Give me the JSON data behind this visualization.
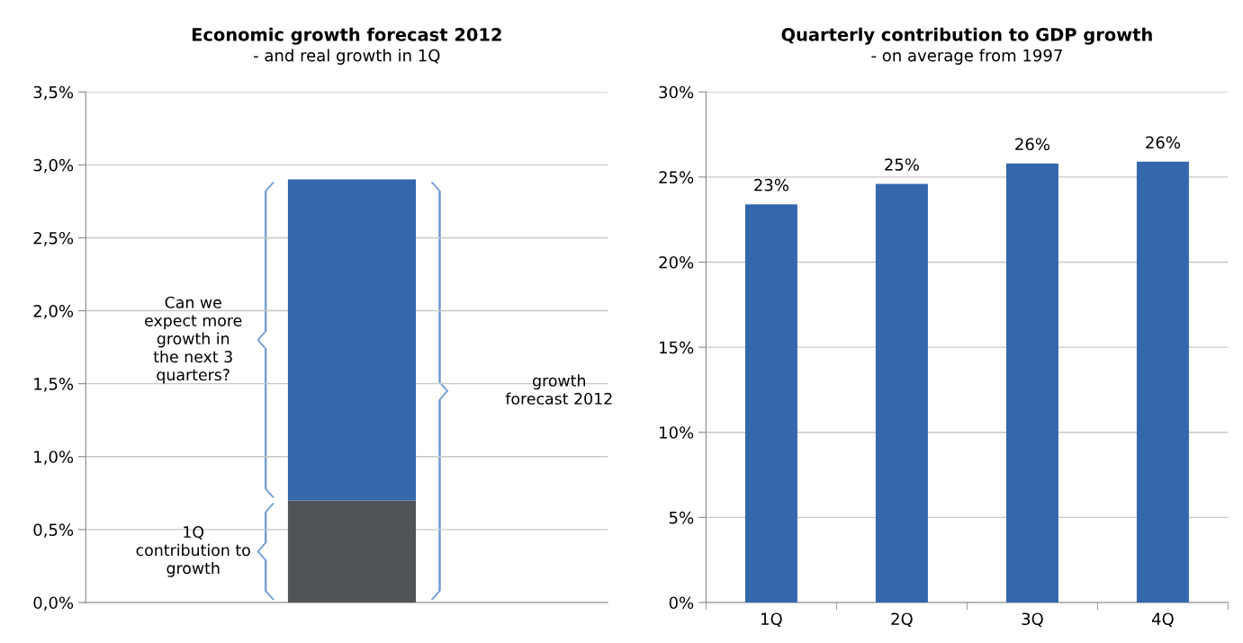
{
  "chart_data": [
    {
      "type": "bar",
      "title": "Economic growth forecast 2012",
      "subtitle": "- and real growth in 1Q",
      "categories": [
        null
      ],
      "stacked": true,
      "grid": "y",
      "tick_labels": "y",
      "series": [
        {
          "color": "#505458",
          "values": [
            0.7
          ]
        },
        {
          "color": "#3567ac",
          "values": [
            2.2
          ]
        }
      ],
      "ylim": [
        0,
        3.5
      ],
      "yticks": [
        {
          "value": 0,
          "label": "0,0%"
        },
        {
          "value": 0.5,
          "label": "0,5%"
        },
        {
          "value": 1,
          "label": "1,0%"
        },
        {
          "value": 1.5,
          "label": "1,5%"
        },
        {
          "value": 2,
          "label": "2,0%"
        },
        {
          "value": 2.5,
          "label": "2,5%"
        },
        {
          "value": 3,
          "label": "3,0%"
        },
        {
          "value": 3.5,
          "label": "3,5%"
        }
      ],
      "annotations": [
        "Can we\nexpect more\ngrowth in\nthe next 3\nquarters?",
        "1Q\ncontribution to\ngrowth",
        "growth\nforecast 2012"
      ]
    },
    {
      "type": "bar",
      "title": "Quarterly contribution to GDP growth",
      "subtitle": "- on average from 1997",
      "categories": [
        "1Q",
        "2Q",
        "3Q",
        "4Q"
      ],
      "grid": "y",
      "series": [
        {
          "color": "#3567ac",
          "values": [
            23.4,
            24.6,
            25.8,
            25.9
          ],
          "value_labels": [
            "23%",
            "25%",
            "26%",
            "26%"
          ]
        }
      ],
      "ylim": [
        0,
        30
      ],
      "yticks": [
        {
          "value": 0,
          "label": "0%"
        },
        {
          "value": 5,
          "label": "5%"
        },
        {
          "value": 10,
          "label": "10%"
        },
        {
          "value": 15,
          "label": "15%"
        },
        {
          "value": 20,
          "label": "20%"
        },
        {
          "value": 25,
          "label": "25%"
        },
        {
          "value": 30,
          "label": "30%"
        }
      ]
    }
  ]
}
